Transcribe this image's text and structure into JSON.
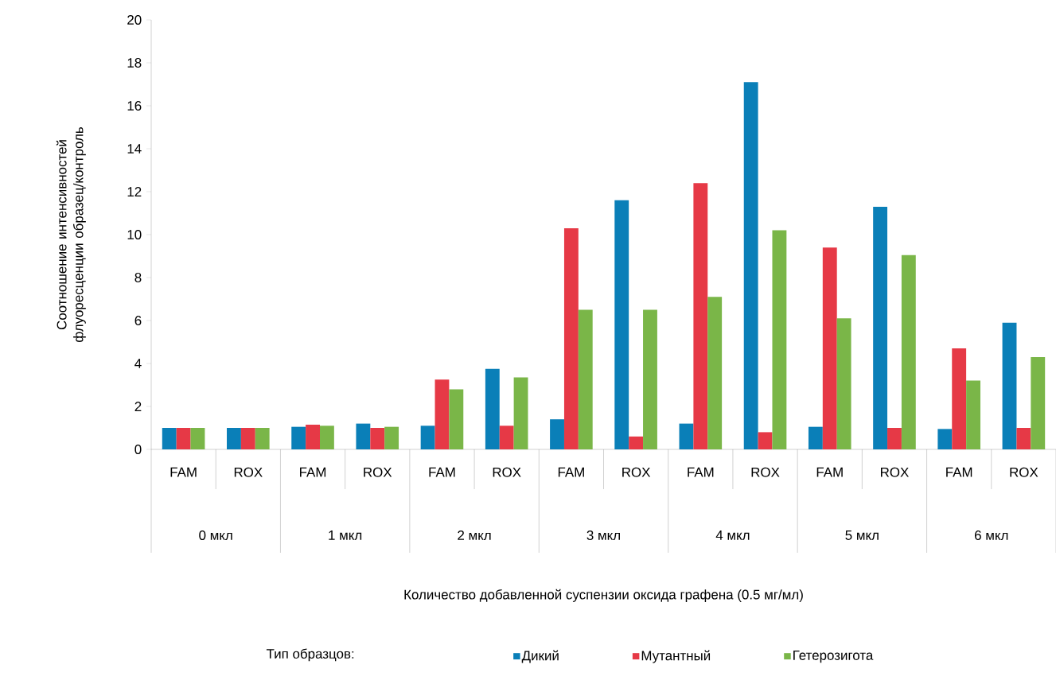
{
  "chart_data": {
    "type": "bar",
    "ylabel": "Соотношение интенсивностей флуоресценции образец/контроль",
    "legend_title": "Тип образцов:",
    "categories": [
      "FAM",
      "ROX",
      "FAM",
      "ROX",
      "FAM",
      "ROX",
      "FAM",
      "ROX",
      "FAM",
      "ROX",
      "FAM",
      "ROX",
      "FAM",
      "ROX"
    ],
    "annotations": [
      "Количество добавленной суспензии оксида графена (0.5 мг/мл)",
      "0 мкл",
      "1 мкл",
      "2 мкл",
      "3 мкл",
      "4 мкл",
      "5 мкл",
      "6 мкл"
    ],
    "series": [
      {
        "name": "Дикий",
        "color": "#0a7fb8",
        "values": [
          1,
          1,
          1.05,
          1.2,
          1.1,
          3.75,
          1.4,
          11.6,
          1.2,
          17.1,
          1.05,
          11.3,
          0.95,
          5.9
        ]
      },
      {
        "name": "Мутантный",
        "color": "#e63946",
        "values": [
          1,
          1,
          1.15,
          1.0,
          3.25,
          1.1,
          10.3,
          0.6,
          12.4,
          0.8,
          9.4,
          1.0,
          4.7,
          1.0
        ]
      },
      {
        "name": "Гетерозигота",
        "color": "#7ab648",
        "values": [
          1,
          1,
          1.1,
          1.05,
          2.8,
          3.35,
          6.5,
          6.5,
          7.1,
          10.2,
          6.1,
          9.05,
          3.2,
          4.3
        ]
      }
    ],
    "ylim": [
      0,
      20
    ],
    "yticks": [
      0,
      2,
      4,
      6,
      8,
      10,
      12,
      14,
      16,
      18,
      20
    ],
    "grid": false,
    "legend": "bottom"
  }
}
